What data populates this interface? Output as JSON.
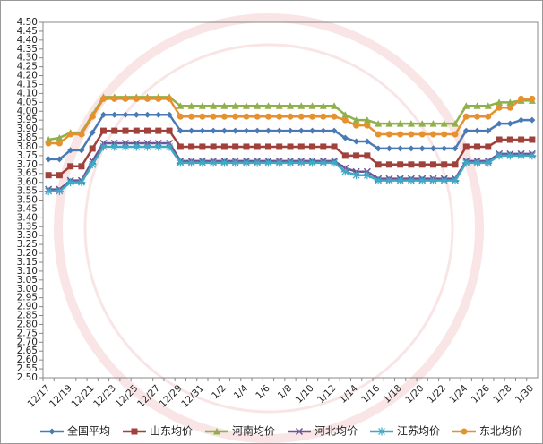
{
  "chart_data": {
    "type": "line",
    "categories": [
      "12/17",
      null,
      "12/19",
      null,
      "12/21",
      null,
      "12/23",
      null,
      "12/25",
      null,
      "12/27",
      null,
      "12/29",
      null,
      "12/31",
      null,
      "1/2",
      null,
      "1/4",
      null,
      "1/6",
      null,
      "1/8",
      null,
      "1/10",
      null,
      "1/12",
      null,
      "1/14",
      null,
      "1/16",
      null,
      "1/18",
      null,
      "1/20",
      null,
      "1/22",
      null,
      "1/24",
      null,
      "1/26",
      null,
      "1/28",
      null,
      "1/30"
    ],
    "series": [
      {
        "name": "全国平均",
        "color": "#4a7ab5",
        "marker": "diamond",
        "values": [
          3.73,
          3.73,
          3.78,
          3.78,
          3.88,
          3.98,
          3.98,
          3.98,
          3.98,
          3.98,
          3.98,
          3.98,
          3.89,
          3.89,
          3.89,
          3.89,
          3.89,
          3.89,
          3.89,
          3.89,
          3.89,
          3.89,
          3.89,
          3.89,
          3.89,
          3.89,
          3.89,
          3.85,
          3.83,
          3.83,
          3.79,
          3.79,
          3.79,
          3.79,
          3.79,
          3.79,
          3.79,
          3.79,
          3.89,
          3.89,
          3.89,
          3.93,
          3.93,
          3.95,
          3.95
        ]
      },
      {
        "name": "山东均价",
        "color": "#a0413c",
        "marker": "square",
        "values": [
          3.64,
          3.64,
          3.69,
          3.69,
          3.79,
          3.89,
          3.89,
          3.89,
          3.89,
          3.89,
          3.89,
          3.89,
          3.8,
          3.8,
          3.8,
          3.8,
          3.8,
          3.8,
          3.8,
          3.8,
          3.8,
          3.8,
          3.8,
          3.8,
          3.8,
          3.8,
          3.8,
          3.75,
          3.75,
          3.75,
          3.7,
          3.7,
          3.7,
          3.7,
          3.7,
          3.7,
          3.7,
          3.7,
          3.8,
          3.8,
          3.8,
          3.84,
          3.84,
          3.84,
          3.84
        ]
      },
      {
        "name": "河南均价",
        "color": "#8fb04a",
        "marker": "triangle",
        "values": [
          3.84,
          3.85,
          3.88,
          3.88,
          3.98,
          4.08,
          4.08,
          4.08,
          4.08,
          4.08,
          4.08,
          4.08,
          4.03,
          4.03,
          4.03,
          4.03,
          4.03,
          4.03,
          4.03,
          4.03,
          4.03,
          4.03,
          4.03,
          4.03,
          4.03,
          4.03,
          4.03,
          3.98,
          3.95,
          3.95,
          3.93,
          3.93,
          3.93,
          3.93,
          3.93,
          3.93,
          3.93,
          3.93,
          4.03,
          4.03,
          4.03,
          4.05,
          4.05,
          4.06,
          4.06
        ]
      },
      {
        "name": "河北均价",
        "color": "#6e5494",
        "marker": "x",
        "values": [
          3.56,
          3.56,
          3.61,
          3.61,
          3.72,
          3.82,
          3.82,
          3.82,
          3.82,
          3.82,
          3.82,
          3.82,
          3.72,
          3.72,
          3.72,
          3.72,
          3.72,
          3.72,
          3.72,
          3.72,
          3.72,
          3.72,
          3.72,
          3.72,
          3.72,
          3.72,
          3.72,
          3.68,
          3.66,
          3.66,
          3.62,
          3.62,
          3.62,
          3.62,
          3.62,
          3.62,
          3.62,
          3.62,
          3.72,
          3.72,
          3.72,
          3.76,
          3.76,
          3.76,
          3.76
        ]
      },
      {
        "name": "江苏均价",
        "color": "#3fa9c5",
        "marker": "star",
        "values": [
          3.55,
          3.55,
          3.6,
          3.6,
          3.7,
          3.8,
          3.8,
          3.8,
          3.8,
          3.8,
          3.8,
          3.8,
          3.71,
          3.71,
          3.71,
          3.71,
          3.71,
          3.71,
          3.71,
          3.71,
          3.71,
          3.71,
          3.71,
          3.71,
          3.71,
          3.71,
          3.71,
          3.66,
          3.64,
          3.64,
          3.61,
          3.61,
          3.61,
          3.61,
          3.61,
          3.61,
          3.61,
          3.61,
          3.71,
          3.71,
          3.71,
          3.75,
          3.75,
          3.75,
          3.75
        ]
      },
      {
        "name": "东北均价",
        "color": "#e6912f",
        "marker": "circle",
        "values": [
          3.82,
          3.82,
          3.87,
          3.87,
          3.97,
          4.07,
          4.07,
          4.07,
          4.07,
          4.07,
          4.07,
          4.07,
          3.97,
          3.97,
          3.97,
          3.97,
          3.97,
          3.97,
          3.97,
          3.97,
          3.97,
          3.97,
          3.97,
          3.97,
          3.97,
          3.97,
          3.97,
          3.95,
          3.92,
          3.92,
          3.87,
          3.87,
          3.87,
          3.87,
          3.87,
          3.87,
          3.87,
          3.87,
          3.97,
          3.97,
          3.97,
          4.02,
          4.02,
          4.07,
          4.07
        ]
      }
    ],
    "ylim": [
      2.5,
      4.5
    ],
    "yticks": [
      {
        "value": 2.5,
        "label": "2.50"
      },
      {
        "value": 2.55,
        "label": "2.55"
      },
      {
        "value": 2.6,
        "label": "2.60"
      },
      {
        "value": 2.65,
        "label": "2.65"
      },
      {
        "value": 2.7,
        "label": "2.70"
      },
      {
        "value": 2.75,
        "label": "2.75"
      },
      {
        "value": 2.8,
        "label": "2.80"
      },
      {
        "value": 2.85,
        "label": "2.85"
      },
      {
        "value": 2.9,
        "label": "2.90"
      },
      {
        "value": 2.95,
        "label": "2.95"
      },
      {
        "value": 3.0,
        "label": "3.00"
      },
      {
        "value": 3.05,
        "label": "3.05"
      },
      {
        "value": 3.1,
        "label": "3.10"
      },
      {
        "value": 3.15,
        "label": "3.15"
      },
      {
        "value": 3.2,
        "label": "3.20"
      },
      {
        "value": 3.25,
        "label": "3.25"
      },
      {
        "value": 3.3,
        "label": "3.30"
      },
      {
        "value": 3.35,
        "label": "3.35"
      },
      {
        "value": 3.4,
        "label": "3.40"
      },
      {
        "value": 3.45,
        "label": "3.45"
      },
      {
        "value": 3.5,
        "label": "3.50"
      },
      {
        "value": 3.55,
        "label": "3.55"
      },
      {
        "value": 3.6,
        "label": "3.60"
      },
      {
        "value": 3.65,
        "label": "3.65"
      },
      {
        "value": 3.7,
        "label": "3.70"
      },
      {
        "value": 3.75,
        "label": "3.75"
      },
      {
        "value": 3.8,
        "label": "3.80"
      },
      {
        "value": 3.85,
        "label": "3.85"
      },
      {
        "value": 3.9,
        "label": "3.90"
      },
      {
        "value": 3.95,
        "label": "3.95"
      },
      {
        "value": 4.0,
        "label": "4.00"
      },
      {
        "value": 4.05,
        "label": "4.05"
      },
      {
        "value": 4.1,
        "label": "4.10"
      },
      {
        "value": 4.15,
        "label": "4.15"
      },
      {
        "value": 4.2,
        "label": "4.20"
      },
      {
        "value": 4.25,
        "label": "4.25"
      },
      {
        "value": 4.3,
        "label": "4.30"
      },
      {
        "value": 4.35,
        "label": "4.35"
      },
      {
        "value": 4.4,
        "label": "4.40"
      },
      {
        "value": 4.45,
        "label": "4.45"
      },
      {
        "value": 4.5,
        "label": "4.50"
      }
    ],
    "legend": "bottom"
  }
}
